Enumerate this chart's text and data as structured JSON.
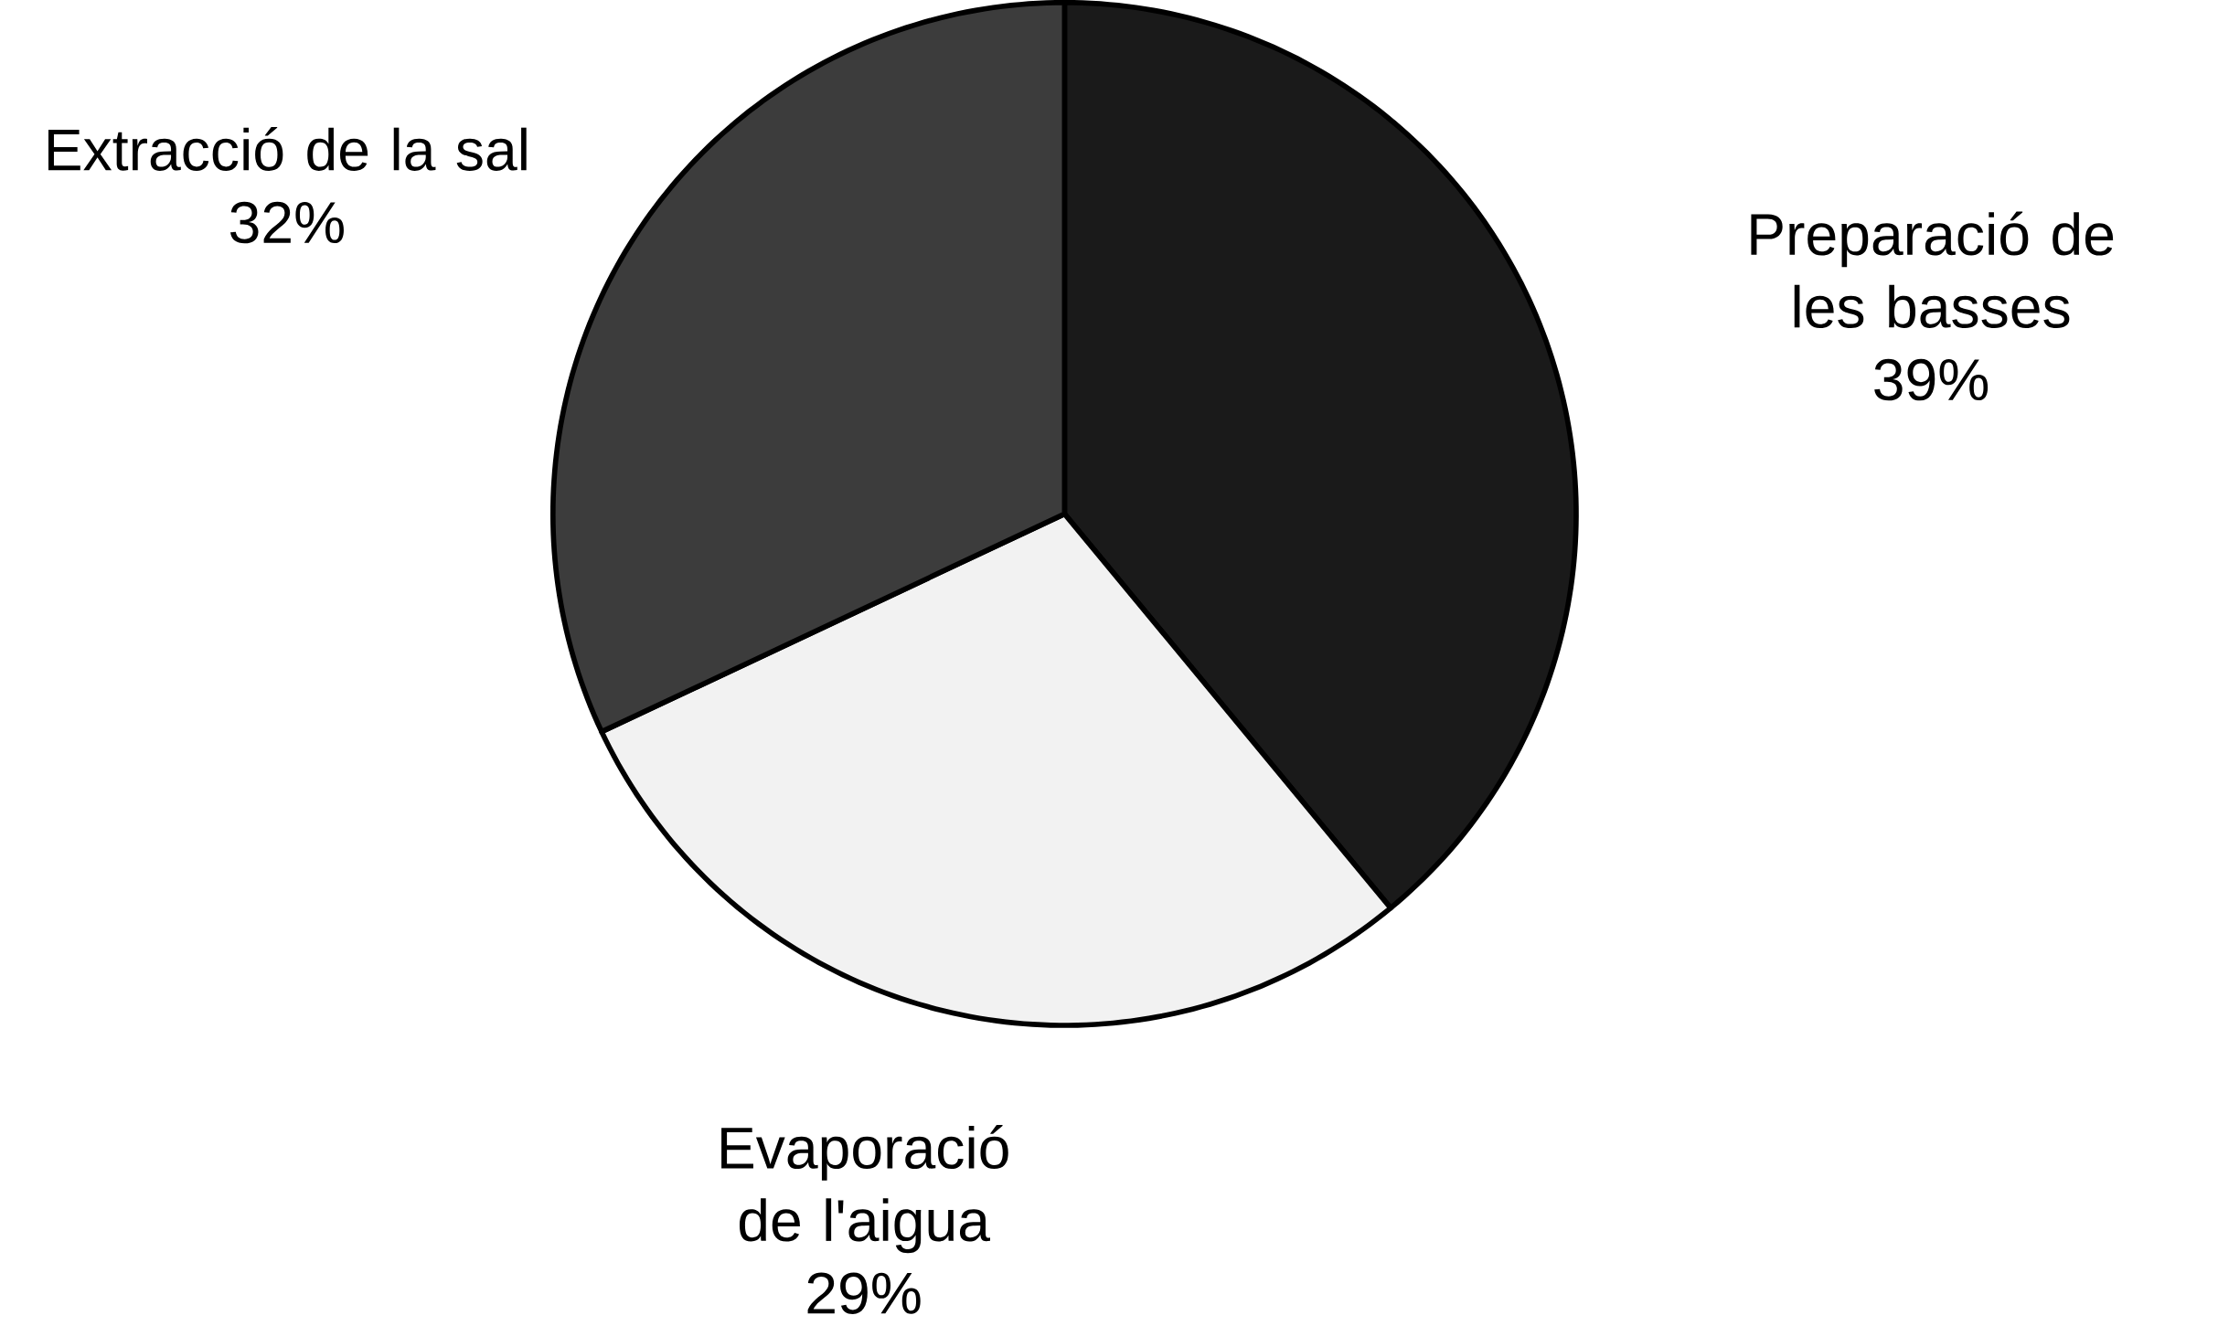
{
  "chart_data": {
    "type": "pie",
    "categories": [
      "Preparació de les basses",
      "Evaporació de l'aigua",
      "Extracció de la sal"
    ],
    "values": [
      39,
      29,
      32
    ],
    "value_labels": [
      "39%",
      "29%",
      "32%"
    ],
    "colors": [
      "#1a1a1a",
      "#f2f2f2",
      "#3c3c3c"
    ]
  }
}
